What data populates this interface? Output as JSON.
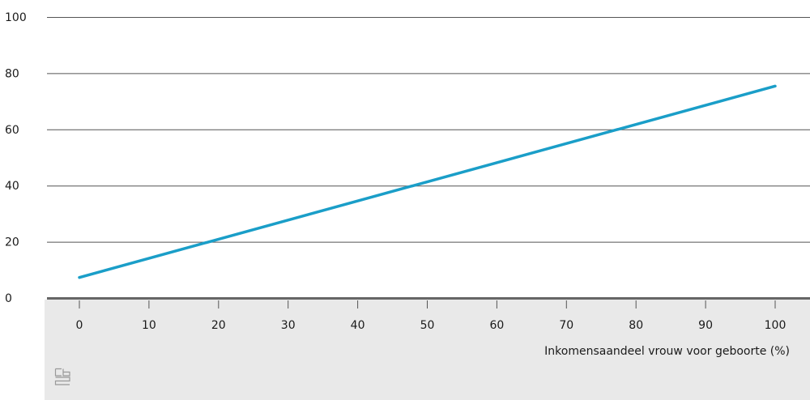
{
  "chart_data": {
    "type": "line",
    "xlabel": "Inkomensaandeel vrouw voor geboorte (%)",
    "ylabel": "",
    "xlim": [
      0,
      100
    ],
    "ylim": [
      0,
      100
    ],
    "x_ticks": [
      "0",
      "10",
      "20",
      "30",
      "40",
      "50",
      "60",
      "70",
      "80",
      "90",
      "100"
    ],
    "y_ticks": [
      "0",
      "20",
      "40",
      "60",
      "80",
      "100"
    ],
    "grid": "horizontal",
    "series": [
      {
        "x": [
          0,
          100
        ],
        "y": [
          7.3,
          75.4
        ]
      }
    ]
  },
  "colors": {
    "line": "#1a9ec8",
    "gridline": "#555555",
    "axis_line": "#666666",
    "axis_band": "#e9e9e9",
    "logo": "#999999"
  },
  "logo": {
    "icon": "cbs-logo-icon",
    "text": "cbs"
  }
}
